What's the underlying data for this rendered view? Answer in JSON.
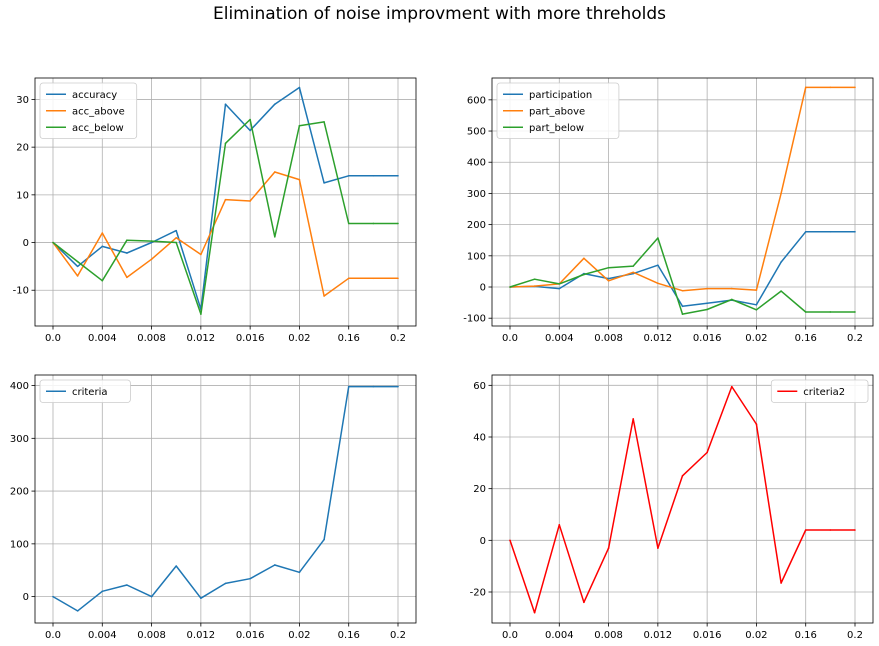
{
  "figure": {
    "title": "Elimination of noise improvment with more threholds"
  },
  "chart_data": [
    {
      "type": "line",
      "x": [
        "0.0",
        "0.002",
        "0.004",
        "0.006",
        "0.008",
        "0.01",
        "0.012",
        "0.014",
        "0.016",
        "0.018",
        "0.02",
        "0.04",
        "0.16",
        "0.18",
        "0.2"
      ],
      "xticks": [
        "0.0",
        "0.004",
        "0.008",
        "0.012",
        "0.016",
        "0.02",
        "0.16",
        "0.2"
      ],
      "ylim": [
        -17.5,
        34.5
      ],
      "yticks": [
        -10,
        0,
        10,
        20,
        30
      ],
      "grid": true,
      "legend_position": "upper-left",
      "series": [
        {
          "name": "accuracy",
          "color": "#1f77b4",
          "values": [
            0,
            -5,
            -0.8,
            -2.2,
            0,
            2.5,
            -14,
            29,
            23.5,
            29,
            32.5,
            12.5,
            14,
            14,
            14
          ]
        },
        {
          "name": "acc_above",
          "color": "#ff7f0e",
          "values": [
            0,
            -7,
            2,
            -7.3,
            -3.5,
            1,
            -2.5,
            9,
            8.7,
            14.8,
            13.2,
            -11.2,
            -7.5,
            -7.5,
            -7.5
          ]
        },
        {
          "name": "acc_below",
          "color": "#2ca02c",
          "values": [
            0,
            -4,
            -8,
            0.5,
            0.3,
            0,
            -15,
            20.8,
            25.8,
            1.2,
            24.5,
            25.3,
            4,
            4,
            4
          ]
        }
      ]
    },
    {
      "type": "line",
      "x": [
        "0.0",
        "0.002",
        "0.004",
        "0.006",
        "0.008",
        "0.01",
        "0.012",
        "0.014",
        "0.016",
        "0.018",
        "0.02",
        "0.04",
        "0.16",
        "0.18",
        "0.2"
      ],
      "xticks": [
        "0.0",
        "0.004",
        "0.008",
        "0.012",
        "0.016",
        "0.02",
        "0.16",
        "0.2"
      ],
      "ylim": [
        -125,
        670
      ],
      "yticks": [
        -100,
        0,
        100,
        200,
        300,
        400,
        500,
        600
      ],
      "grid": true,
      "legend_position": "upper-left",
      "series": [
        {
          "name": "participation",
          "color": "#1f77b4",
          "values": [
            0,
            2,
            -5,
            43,
            27,
            43,
            70,
            -62,
            -52,
            -42,
            -57,
            80,
            177,
            177,
            177
          ]
        },
        {
          "name": "part_above",
          "color": "#ff7f0e",
          "values": [
            0,
            3,
            10,
            92,
            20,
            47,
            12,
            -12,
            -5,
            -5,
            -10,
            300,
            640,
            640,
            640
          ]
        },
        {
          "name": "part_below",
          "color": "#2ca02c",
          "values": [
            0,
            25,
            10,
            40,
            62,
            67,
            157,
            -87,
            -72,
            -40,
            -73,
            -13,
            -80,
            -80,
            -80
          ]
        }
      ]
    },
    {
      "type": "line",
      "x": [
        "0.0",
        "0.002",
        "0.004",
        "0.006",
        "0.008",
        "0.01",
        "0.012",
        "0.014",
        "0.016",
        "0.018",
        "0.02",
        "0.04",
        "0.16",
        "0.18",
        "0.2"
      ],
      "xticks": [
        "0.0",
        "0.004",
        "0.008",
        "0.012",
        "0.016",
        "0.02",
        "0.16",
        "0.2"
      ],
      "ylim": [
        -50,
        420
      ],
      "yticks": [
        0,
        100,
        200,
        300,
        400
      ],
      "grid": true,
      "legend_position": "upper-left",
      "series": [
        {
          "name": "criteria",
          "color": "#1f77b4",
          "values": [
            0,
            -27,
            10,
            22,
            0,
            58,
            -3,
            25,
            34,
            60,
            46,
            108,
            398,
            398,
            398
          ]
        }
      ]
    },
    {
      "type": "line",
      "x": [
        "0.0",
        "0.002",
        "0.004",
        "0.006",
        "0.008",
        "0.01",
        "0.012",
        "0.014",
        "0.016",
        "0.018",
        "0.02",
        "0.04",
        "0.16",
        "0.18",
        "0.2"
      ],
      "xticks": [
        "0.0",
        "0.004",
        "0.008",
        "0.012",
        "0.016",
        "0.02",
        "0.16",
        "0.2"
      ],
      "ylim": [
        -32,
        64
      ],
      "yticks": [
        -20,
        0,
        20,
        40,
        60
      ],
      "grid": true,
      "legend_position": "upper-right",
      "series": [
        {
          "name": "criteria2",
          "color": "#ff0000",
          "values": [
            0,
            -28,
            6,
            -24,
            -3,
            47,
            -3,
            25,
            34,
            59.5,
            45,
            -16.5,
            4,
            4,
            4
          ]
        }
      ]
    }
  ]
}
